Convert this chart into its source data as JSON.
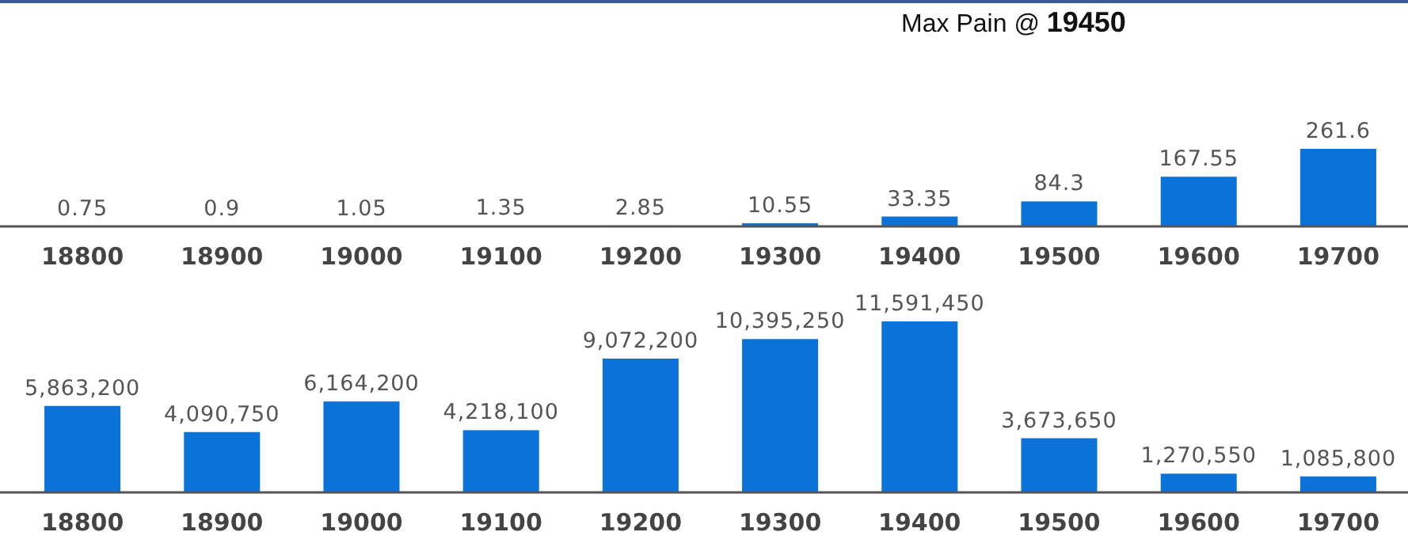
{
  "chart_data": [
    {
      "type": "bar",
      "title": "Max Pain @ 19450",
      "categories": [
        "18800",
        "18900",
        "19000",
        "19100",
        "19200",
        "19300",
        "19400",
        "19500",
        "19600",
        "19700"
      ],
      "series": [
        {
          "color": "#0a72d8",
          "values": [
            0.75,
            0.9,
            1.05,
            1.35,
            2.85,
            10.55,
            33.35,
            84.3,
            167.55,
            261.6
          ]
        }
      ],
      "data_labels": true,
      "tick_labels": "x"
    },
    {
      "type": "bar",
      "categories": [
        "18800",
        "18900",
        "19000",
        "19100",
        "19200",
        "19300",
        "19400",
        "19500",
        "19600",
        "19700"
      ],
      "series": [
        {
          "color": "#0a72d8",
          "values": [
            5863200,
            4090750,
            6164200,
            4218100,
            9072200,
            10395250,
            11591450,
            3673650,
            1270550,
            1085800
          ],
          "value_labels": [
            "5,863,200",
            "4,090,750",
            "6,164,200",
            "4,218,100",
            "9,072,200",
            "10,395,250",
            "11,591,450",
            "3,673,650",
            "1,270,550",
            "1,085,800"
          ]
        }
      ],
      "tick_labels": "x"
    }
  ]
}
